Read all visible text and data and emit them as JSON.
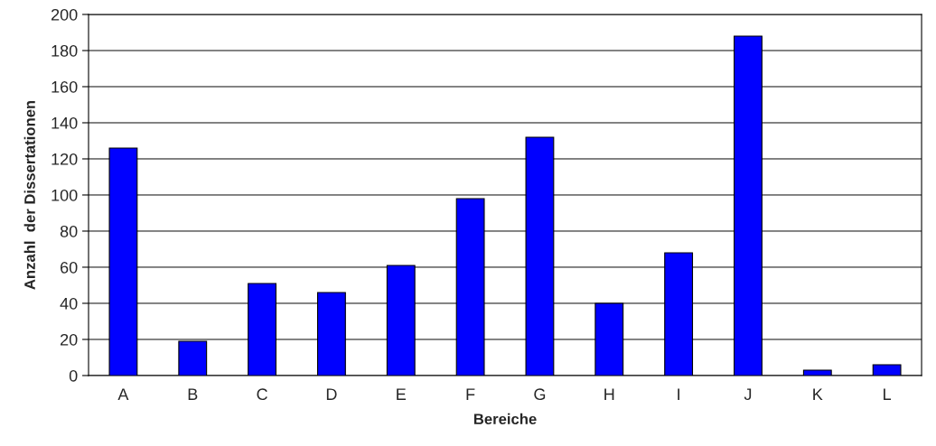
{
  "chart_data": {
    "type": "bar",
    "xlabel": "Bereiche",
    "ylabel": "Anzahl  der Dissertationen",
    "categories": [
      "A",
      "B",
      "C",
      "D",
      "E",
      "F",
      "G",
      "H",
      "I",
      "J",
      "K",
      "L"
    ],
    "values": [
      126,
      19,
      51,
      46,
      61,
      98,
      132,
      40,
      68,
      188,
      3,
      6
    ],
    "color": "#0000ff",
    "ylim": [
      0,
      200
    ],
    "yticks": [
      0,
      20,
      40,
      60,
      80,
      100,
      120,
      140,
      160,
      180,
      200
    ],
    "grid": "y"
  }
}
